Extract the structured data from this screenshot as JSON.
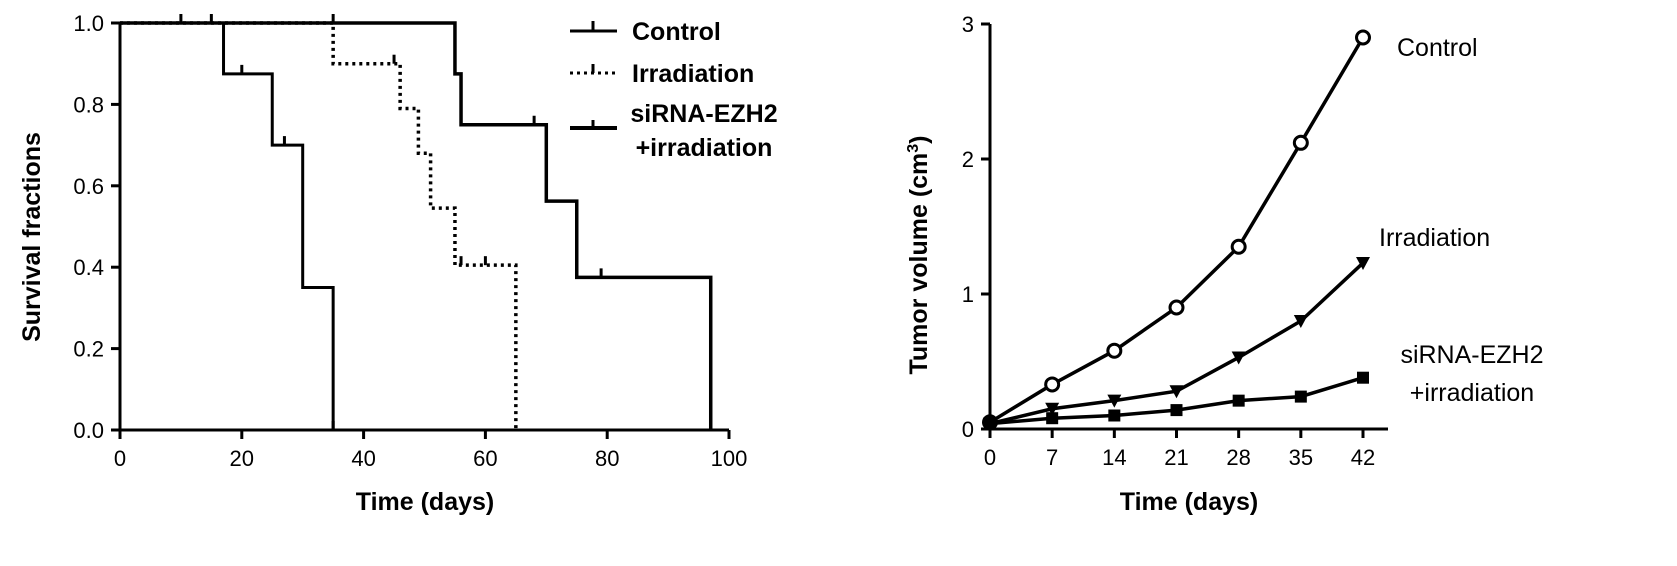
{
  "chart_data": [
    {
      "type": "line",
      "subtype": "kaplan-meier-step",
      "xlabel": "Time (days)",
      "ylabel": "Survival fractions",
      "xlim": [
        0,
        100
      ],
      "ylim": [
        0,
        1.0
      ],
      "xticks": [
        "0",
        "20",
        "40",
        "60",
        "80",
        "100"
      ],
      "yticks": [
        "0.0",
        "0.2",
        "0.4",
        "0.6",
        "0.8",
        "1.0"
      ],
      "grid": false,
      "legend_position": "top-right",
      "series": [
        {
          "name": "Control",
          "line_style": "solid-thick",
          "step": [
            [
              0,
              1.0
            ],
            [
              55,
              1.0
            ],
            [
              55,
              0.875
            ],
            [
              56,
              0.875
            ],
            [
              56,
              0.75
            ],
            [
              70,
              0.75
            ],
            [
              70,
              0.5625
            ],
            [
              75,
              0.5625
            ],
            [
              75,
              0.375
            ],
            [
              97,
              0.375
            ],
            [
              97,
              0.0
            ]
          ],
          "censored": [
            [
              10,
              1.0
            ],
            [
              15,
              1.0
            ],
            [
              68,
              0.75
            ],
            [
              79,
              0.375
            ]
          ]
        },
        {
          "name": "Irradiation",
          "line_style": "dotted",
          "step": [
            [
              0,
              1.0
            ],
            [
              35,
              1.0
            ],
            [
              35,
              0.9
            ],
            [
              46,
              0.9
            ],
            [
              46,
              0.79
            ],
            [
              49,
              0.79
            ],
            [
              49,
              0.68
            ],
            [
              51,
              0.68
            ],
            [
              51,
              0.545
            ],
            [
              55,
              0.545
            ],
            [
              55,
              0.405
            ],
            [
              65,
              0.405
            ],
            [
              65,
              0.0
            ]
          ],
          "censored": [
            [
              35,
              1.0
            ],
            [
              45,
              0.9
            ],
            [
              56,
              0.405
            ],
            [
              60,
              0.405
            ]
          ]
        },
        {
          "name": "siRNA-EZH2\n+irradiation",
          "line_style": "solid-thin",
          "step": [
            [
              0,
              1.0
            ],
            [
              17,
              1.0
            ],
            [
              17,
              0.875
            ],
            [
              25,
              0.875
            ],
            [
              25,
              0.7
            ],
            [
              30,
              0.7
            ],
            [
              30,
              0.35
            ],
            [
              35,
              0.35
            ],
            [
              35,
              0.0
            ]
          ],
          "censored": [
            [
              20,
              0.875
            ],
            [
              27,
              0.7
            ],
            [
              35,
              0.0
            ]
          ]
        }
      ],
      "legend": [
        {
          "line1": "Control",
          "line2": ""
        },
        {
          "line1": "Irradiation",
          "line2": ""
        },
        {
          "line1": "siRNA-EZH2",
          "line2": "+irradiation"
        }
      ]
    },
    {
      "type": "line",
      "xlabel": "Time (days)",
      "ylabel_main": "Tumor  volume (cm",
      "ylabel_sup": "3",
      "ylabel_close": ")",
      "xlim": [
        0,
        42
      ],
      "ylim": [
        0,
        3
      ],
      "xticks": [
        "0",
        "7",
        "14",
        "21",
        "28",
        "35",
        "42"
      ],
      "yticks": [
        "0",
        "1",
        "2",
        "3"
      ],
      "grid": false,
      "x": [
        0,
        7,
        14,
        21,
        28,
        35,
        42
      ],
      "series": [
        {
          "name": "Control",
          "marker": "open-circle",
          "values": [
            0.05,
            0.33,
            0.58,
            0.9,
            1.35,
            2.12,
            2.9
          ]
        },
        {
          "name": "Irradiation",
          "marker": "filled-triangle-down",
          "values": [
            0.04,
            0.15,
            0.21,
            0.28,
            0.53,
            0.8,
            1.23
          ]
        },
        {
          "name": "siRNA-EZH2\n+irradiation",
          "marker": "filled-square",
          "values": [
            0.04,
            0.08,
            0.1,
            0.14,
            0.21,
            0.24,
            0.38
          ]
        }
      ],
      "labels": [
        {
          "line1": "Control",
          "line2": ""
        },
        {
          "line1": "Irradiation",
          "line2": ""
        },
        {
          "line1": "siRNA-EZH2",
          "line2": "+irradiation"
        }
      ]
    }
  ]
}
